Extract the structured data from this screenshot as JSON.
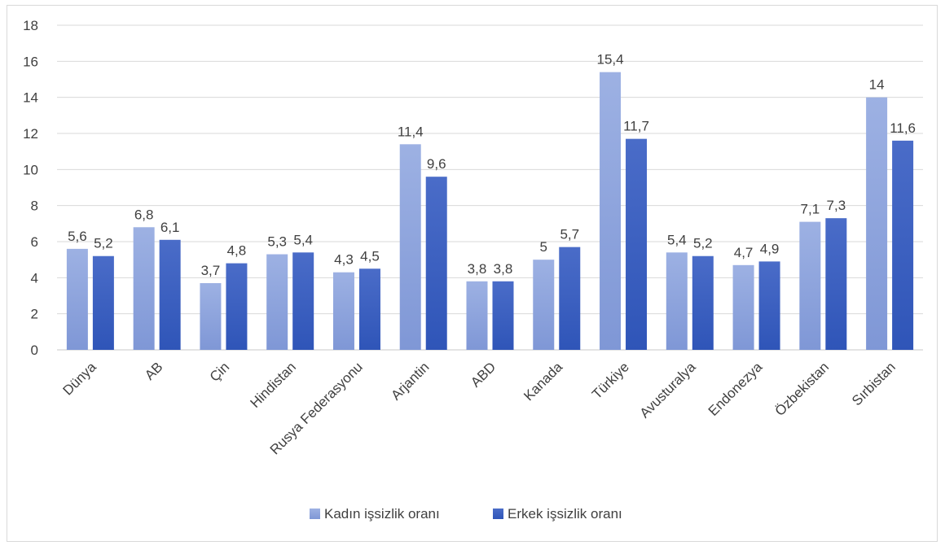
{
  "chart_data": {
    "type": "bar",
    "categories": [
      "Dünya",
      "AB",
      "Çin",
      "Hindistan",
      "Rusya Federasyonu",
      "Arjantin",
      "ABD",
      "Kanada",
      "Türkiye",
      "Avusturalya",
      "Endonezya",
      "Özbekistan",
      "Sırbistan"
    ],
    "series": [
      {
        "name": "Kadın işsizlik oranı",
        "values": [
          5.6,
          6.8,
          3.7,
          5.3,
          4.3,
          11.4,
          3.8,
          5,
          15.4,
          5.4,
          4.7,
          7.1,
          14
        ],
        "labels": [
          "5,6",
          "6,8",
          "3,7",
          "5,3",
          "4,3",
          "11,4",
          "3,8",
          "5",
          "15,4",
          "5,4",
          "4,7",
          "7,1",
          "14"
        ],
        "color": "#8fa5dc"
      },
      {
        "name": "Erkek işsizlik oranı",
        "values": [
          5.2,
          6.1,
          4.8,
          5.4,
          4.5,
          9.6,
          3.8,
          5.7,
          11.7,
          5.2,
          4.9,
          7.3,
          11.6
        ],
        "labels": [
          "5,2",
          "6,1",
          "4,8",
          "5,4",
          "4,5",
          "9,6",
          "3,8",
          "5,7",
          "11,7",
          "5,2",
          "4,9",
          "7,3",
          "11,6"
        ],
        "color": "#3f63c2"
      }
    ],
    "ylim": [
      0,
      18
    ],
    "yticks": [
      "0",
      "2",
      "4",
      "6",
      "8",
      "10",
      "12",
      "14",
      "16",
      "18"
    ],
    "grid": true,
    "legend_position": "bottom"
  }
}
